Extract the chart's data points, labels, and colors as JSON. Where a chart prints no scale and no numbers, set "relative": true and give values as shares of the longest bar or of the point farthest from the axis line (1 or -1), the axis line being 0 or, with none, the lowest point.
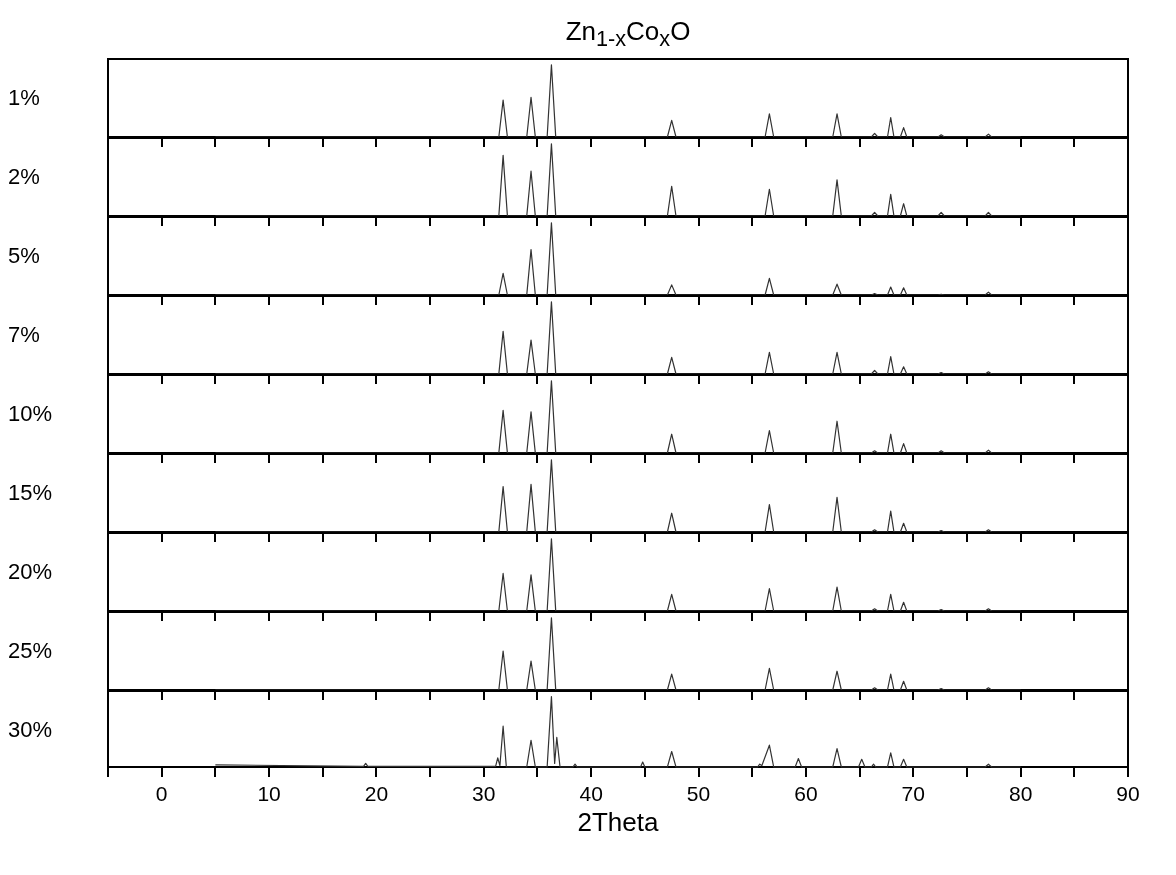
{
  "chart_data": [
    {
      "type": "line",
      "title": "Zn$_{1-x}$Co$_{x}$O",
      "ylabel": "1%",
      "relative": true,
      "color": "#333333",
      "xlim": [
        -5,
        90
      ],
      "tick_labels": false,
      "xticks": [
        {
          "value": -5,
          "label": null
        },
        0,
        {
          "value": 5,
          "label": null
        },
        10,
        {
          "value": 15,
          "label": null
        },
        20,
        {
          "value": 25,
          "label": null
        },
        30,
        {
          "value": 35,
          "label": null
        },
        40,
        {
          "value": 45,
          "label": null
        },
        50,
        {
          "value": 55,
          "label": null
        },
        60,
        {
          "value": 65,
          "label": null
        },
        70,
        {
          "value": 75,
          "label": null
        },
        80,
        {
          "value": 85,
          "label": null
        },
        90
      ],
      "x": [
        5,
        31.4,
        31.8,
        32.2,
        34.0,
        34.4,
        34.8,
        35.9,
        36.3,
        36.7,
        47.1,
        47.5,
        47.9,
        56.2,
        56.6,
        57.0,
        62.5,
        62.9,
        63.3,
        66.1,
        66.4,
        66.7,
        67.6,
        67.9,
        68.2,
        68.8,
        69.1,
        69.4,
        72.3,
        72.6,
        72.9,
        76.7,
        77.0,
        77.3,
        80
      ],
      "values": [
        0,
        0,
        0.51,
        0,
        0,
        0.55,
        0,
        0,
        1,
        0,
        0,
        0.23,
        0,
        0,
        0.32,
        0,
        0,
        0.32,
        0,
        0,
        0.05,
        0,
        0,
        0.27,
        0,
        0,
        0.13,
        0,
        0,
        0.03,
        0,
        0,
        0.04,
        0,
        0
      ]
    },
    {
      "type": "line",
      "ylabel": "2%",
      "relative": true,
      "color": "#333333",
      "xlim": [
        -5,
        90
      ],
      "tick_labels": false,
      "xticks": [
        {
          "value": -5,
          "label": null
        },
        0,
        {
          "value": 5,
          "label": null
        },
        10,
        {
          "value": 15,
          "label": null
        },
        20,
        {
          "value": 25,
          "label": null
        },
        30,
        {
          "value": 35,
          "label": null
        },
        40,
        {
          "value": 45,
          "label": null
        },
        50,
        {
          "value": 55,
          "label": null
        },
        60,
        {
          "value": 65,
          "label": null
        },
        70,
        {
          "value": 75,
          "label": null
        },
        80,
        {
          "value": 85,
          "label": null
        },
        90
      ],
      "x": [
        5,
        31.4,
        31.8,
        32.2,
        34.0,
        34.4,
        34.8,
        35.9,
        36.3,
        36.7,
        47.1,
        47.5,
        47.9,
        56.2,
        56.6,
        57.0,
        62.5,
        62.9,
        63.3,
        66.1,
        66.4,
        66.7,
        67.6,
        67.9,
        68.2,
        68.8,
        69.1,
        69.4,
        72.3,
        72.6,
        72.9,
        76.7,
        77.0,
        77.3,
        80
      ],
      "values": [
        0,
        0,
        0.84,
        0,
        0,
        0.62,
        0,
        0,
        1,
        0,
        0,
        0.41,
        0,
        0,
        0.37,
        0,
        0,
        0.5,
        0,
        0,
        0.05,
        0,
        0,
        0.3,
        0,
        0,
        0.17,
        0,
        0,
        0.05,
        0,
        0,
        0.05,
        0,
        0
      ]
    },
    {
      "type": "line",
      "ylabel": "5%",
      "relative": true,
      "color": "#333333",
      "xlim": [
        -5,
        90
      ],
      "tick_labels": false,
      "xticks": [
        {
          "value": -5,
          "label": null
        },
        0,
        {
          "value": 5,
          "label": null
        },
        10,
        {
          "value": 15,
          "label": null
        },
        20,
        {
          "value": 25,
          "label": null
        },
        30,
        {
          "value": 35,
          "label": null
        },
        40,
        {
          "value": 45,
          "label": null
        },
        50,
        {
          "value": 55,
          "label": null
        },
        60,
        {
          "value": 65,
          "label": null
        },
        70,
        {
          "value": 75,
          "label": null
        },
        80,
        {
          "value": 85,
          "label": null
        },
        90
      ],
      "x": [
        5,
        31.4,
        31.8,
        32.2,
        34.0,
        34.4,
        34.8,
        35.9,
        36.3,
        36.7,
        47.1,
        47.5,
        47.9,
        56.2,
        56.6,
        57.0,
        62.5,
        62.9,
        63.3,
        66.1,
        66.4,
        66.7,
        67.6,
        67.9,
        68.2,
        68.8,
        69.1,
        69.4,
        72.3,
        72.6,
        72.9,
        76.7,
        77.0,
        77.3,
        80
      ],
      "values": [
        0,
        0,
        0.3,
        0,
        0,
        0.63,
        0,
        0,
        1,
        0,
        0,
        0.14,
        0,
        0,
        0.23,
        0,
        0,
        0.15,
        0,
        0,
        0.02,
        0,
        0,
        0.11,
        0,
        0,
        0.1,
        0,
        0,
        0.01,
        0,
        0,
        0.04,
        0,
        0
      ]
    },
    {
      "type": "line",
      "ylabel": "7%",
      "relative": true,
      "color": "#333333",
      "xlim": [
        -5,
        90
      ],
      "tick_labels": false,
      "xticks": [
        {
          "value": -5,
          "label": null
        },
        0,
        {
          "value": 5,
          "label": null
        },
        10,
        {
          "value": 15,
          "label": null
        },
        20,
        {
          "value": 25,
          "label": null
        },
        30,
        {
          "value": 35,
          "label": null
        },
        40,
        {
          "value": 45,
          "label": null
        },
        50,
        {
          "value": 55,
          "label": null
        },
        60,
        {
          "value": 65,
          "label": null
        },
        70,
        {
          "value": 75,
          "label": null
        },
        80,
        {
          "value": 85,
          "label": null
        },
        90
      ],
      "x": [
        5,
        31.4,
        31.8,
        32.2,
        34.0,
        34.4,
        34.8,
        35.9,
        36.3,
        36.7,
        47.1,
        47.5,
        47.9,
        56.2,
        56.6,
        57.0,
        62.5,
        62.9,
        63.3,
        66.1,
        66.4,
        66.7,
        67.6,
        67.9,
        68.2,
        68.8,
        69.1,
        69.4,
        72.3,
        72.6,
        72.9,
        76.7,
        77.0,
        77.3,
        80
      ],
      "values": [
        0,
        0,
        0.59,
        0,
        0,
        0.47,
        0,
        0,
        1,
        0,
        0,
        0.23,
        0,
        0,
        0.3,
        0,
        0,
        0.3,
        0,
        0,
        0.05,
        0,
        0,
        0.24,
        0,
        0,
        0.1,
        0,
        0,
        0.02,
        0,
        0,
        0.03,
        0,
        0
      ]
    },
    {
      "type": "line",
      "ylabel": "10%",
      "relative": true,
      "color": "#333333",
      "xlim": [
        -5,
        90
      ],
      "tick_labels": false,
      "xticks": [
        {
          "value": -5,
          "label": null
        },
        0,
        {
          "value": 5,
          "label": null
        },
        10,
        {
          "value": 15,
          "label": null
        },
        20,
        {
          "value": 25,
          "label": null
        },
        30,
        {
          "value": 35,
          "label": null
        },
        40,
        {
          "value": 45,
          "label": null
        },
        50,
        {
          "value": 55,
          "label": null
        },
        60,
        {
          "value": 65,
          "label": null
        },
        70,
        {
          "value": 75,
          "label": null
        },
        80,
        {
          "value": 85,
          "label": null
        },
        90
      ],
      "x": [
        5,
        31.4,
        31.8,
        32.2,
        34.0,
        34.4,
        34.8,
        35.9,
        36.3,
        36.7,
        47.1,
        47.5,
        47.9,
        56.2,
        56.6,
        57.0,
        62.5,
        62.9,
        63.3,
        66.1,
        66.4,
        66.7,
        67.6,
        67.9,
        68.2,
        68.8,
        69.1,
        69.4,
        72.3,
        72.6,
        72.9,
        76.7,
        77.0,
        77.3,
        80
      ],
      "values": [
        0,
        0,
        0.59,
        0,
        0,
        0.57,
        0,
        0,
        1,
        0,
        0,
        0.26,
        0,
        0,
        0.31,
        0,
        0,
        0.44,
        0,
        0,
        0.03,
        0,
        0,
        0.26,
        0,
        0,
        0.13,
        0,
        0,
        0.03,
        0,
        0,
        0.04,
        0,
        0
      ]
    },
    {
      "type": "line",
      "ylabel": "15%",
      "relative": true,
      "color": "#333333",
      "xlim": [
        -5,
        90
      ],
      "tick_labels": false,
      "xticks": [
        {
          "value": -5,
          "label": null
        },
        0,
        {
          "value": 5,
          "label": null
        },
        10,
        {
          "value": 15,
          "label": null
        },
        20,
        {
          "value": 25,
          "label": null
        },
        30,
        {
          "value": 35,
          "label": null
        },
        40,
        {
          "value": 45,
          "label": null
        },
        50,
        {
          "value": 55,
          "label": null
        },
        60,
        {
          "value": 65,
          "label": null
        },
        70,
        {
          "value": 75,
          "label": null
        },
        80,
        {
          "value": 85,
          "label": null
        },
        90
      ],
      "x": [
        5,
        31.4,
        31.8,
        32.2,
        34.0,
        34.4,
        34.8,
        35.9,
        36.3,
        36.7,
        47.1,
        47.5,
        47.9,
        56.2,
        56.6,
        57.0,
        62.5,
        62.9,
        63.3,
        66.1,
        66.4,
        66.7,
        67.6,
        67.9,
        68.2,
        68.8,
        69.1,
        69.4,
        72.3,
        72.6,
        72.9,
        76.7,
        77.0,
        77.3,
        80
      ],
      "values": [
        0,
        0,
        0.63,
        0,
        0,
        0.66,
        0,
        0,
        1,
        0,
        0,
        0.26,
        0,
        0,
        0.38,
        0,
        0,
        0.48,
        0,
        0,
        0.03,
        0,
        0,
        0.29,
        0,
        0,
        0.12,
        0,
        0,
        0.02,
        0,
        0,
        0.03,
        0,
        0
      ]
    },
    {
      "type": "line",
      "ylabel": "20%",
      "relative": true,
      "color": "#333333",
      "xlim": [
        -5,
        90
      ],
      "tick_labels": false,
      "xticks": [
        {
          "value": -5,
          "label": null
        },
        0,
        {
          "value": 5,
          "label": null
        },
        10,
        {
          "value": 15,
          "label": null
        },
        20,
        {
          "value": 25,
          "label": null
        },
        30,
        {
          "value": 35,
          "label": null
        },
        40,
        {
          "value": 45,
          "label": null
        },
        50,
        {
          "value": 55,
          "label": null
        },
        60,
        {
          "value": 65,
          "label": null
        },
        70,
        {
          "value": 75,
          "label": null
        },
        80,
        {
          "value": 85,
          "label": null
        },
        90
      ],
      "x": [
        5,
        31.4,
        31.8,
        32.2,
        34.0,
        34.4,
        34.8,
        35.9,
        36.3,
        36.7,
        47.1,
        47.5,
        47.9,
        56.2,
        56.6,
        57.0,
        62.5,
        62.9,
        63.3,
        66.1,
        66.4,
        66.7,
        67.6,
        67.9,
        68.2,
        68.8,
        69.1,
        69.4,
        72.3,
        72.6,
        72.9,
        76.7,
        77.0,
        77.3,
        80
      ],
      "values": [
        0,
        0,
        0.52,
        0,
        0,
        0.5,
        0,
        0,
        1,
        0,
        0,
        0.23,
        0,
        0,
        0.31,
        0,
        0,
        0.33,
        0,
        0,
        0.03,
        0,
        0,
        0.23,
        0,
        0,
        0.12,
        0,
        0,
        0.02,
        0,
        0,
        0.03,
        0,
        0
      ]
    },
    {
      "type": "line",
      "ylabel": "25%",
      "relative": true,
      "color": "#333333",
      "xlim": [
        -5,
        90
      ],
      "tick_labels": false,
      "xticks": [
        {
          "value": -5,
          "label": null
        },
        0,
        {
          "value": 5,
          "label": null
        },
        10,
        {
          "value": 15,
          "label": null
        },
        20,
        {
          "value": 25,
          "label": null
        },
        30,
        {
          "value": 35,
          "label": null
        },
        40,
        {
          "value": 45,
          "label": null
        },
        50,
        {
          "value": 55,
          "label": null
        },
        60,
        {
          "value": 65,
          "label": null
        },
        70,
        {
          "value": 75,
          "label": null
        },
        80,
        {
          "value": 85,
          "label": null
        },
        90
      ],
      "x": [
        5,
        31.4,
        31.8,
        32.2,
        34.0,
        34.4,
        34.8,
        35.9,
        36.3,
        36.7,
        47.1,
        47.5,
        47.9,
        56.2,
        56.6,
        57.0,
        62.5,
        62.9,
        63.3,
        66.1,
        66.4,
        66.7,
        67.6,
        67.9,
        68.2,
        68.8,
        69.1,
        69.4,
        72.3,
        72.6,
        72.9,
        76.7,
        77.0,
        77.3,
        80
      ],
      "values": [
        0,
        0,
        0.54,
        0,
        0,
        0.4,
        0,
        0,
        1,
        0,
        0,
        0.22,
        0,
        0,
        0.3,
        0,
        0,
        0.26,
        0,
        0,
        0.03,
        0,
        0,
        0.22,
        0,
        0,
        0.12,
        0,
        0,
        0.02,
        0,
        0,
        0.03,
        0,
        0
      ]
    },
    {
      "type": "line",
      "ylabel": "30%",
      "xlabel": "2Theta",
      "relative": true,
      "color": "#333333",
      "xlim": [
        -5,
        90
      ],
      "tick_labels": "x",
      "xticks": [
        {
          "value": -5,
          "label": null
        },
        0,
        {
          "value": 5,
          "label": null
        },
        10,
        {
          "value": 15,
          "label": null
        },
        20,
        {
          "value": 25,
          "label": null
        },
        30,
        {
          "value": 35,
          "label": null
        },
        40,
        {
          "value": 45,
          "label": null
        },
        50,
        {
          "value": 55,
          "label": null
        },
        60,
        {
          "value": 65,
          "label": null
        },
        70,
        {
          "value": 75,
          "label": null
        },
        80,
        {
          "value": 85,
          "label": null
        },
        90
      ],
      "x": [
        5,
        18.8,
        19,
        19.2,
        31.1,
        31.3,
        31.5,
        31.8,
        32.1,
        34.0,
        34.4,
        34.8,
        35.9,
        36.3,
        36.6,
        36.8,
        37.1,
        38.3,
        38.5,
        38.7,
        44.6,
        44.8,
        45.0,
        47.1,
        47.5,
        47.9,
        55.5,
        55.7,
        55.9,
        56.6,
        57.0,
        59.0,
        59.3,
        59.6,
        62.5,
        62.9,
        63.3,
        64.9,
        65.2,
        65.5,
        66.1,
        66.3,
        66.5,
        67.6,
        67.9,
        68.2,
        68.8,
        69.1,
        69.4,
        76.7,
        77.0,
        77.3,
        80
      ],
      "values": [
        0.03,
        0.01,
        0.05,
        0.01,
        0.01,
        0.13,
        0.02,
        0.58,
        0,
        0,
        0.38,
        0,
        0,
        1,
        0.05,
        0.42,
        0,
        0,
        0.04,
        0,
        0,
        0.07,
        0,
        0,
        0.22,
        0,
        0,
        0.04,
        0.02,
        0.31,
        0,
        0,
        0.12,
        0,
        0,
        0.26,
        0,
        0,
        0.11,
        0,
        0,
        0.04,
        0,
        0,
        0.2,
        0,
        0,
        0.11,
        0,
        0,
        0.04,
        0,
        0
      ]
    }
  ]
}
